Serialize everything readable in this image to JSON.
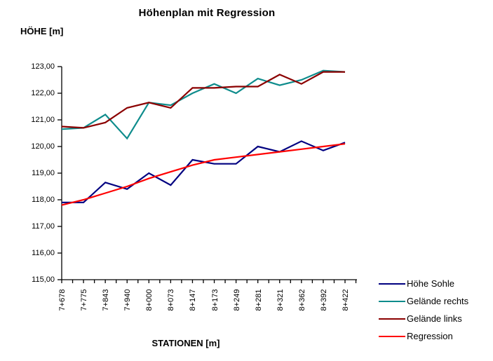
{
  "chart_data": {
    "type": "line",
    "title": "Höhenplan mit Regression",
    "ylabel": "HÖHE [m]",
    "xlabel": "STATIONEN [m]",
    "ylim": [
      115,
      123
    ],
    "grid": false,
    "legend_position": "bottom-right",
    "y_ticks": [
      {
        "v": 123,
        "label": "123,00"
      },
      {
        "v": 122,
        "label": "122,00"
      },
      {
        "v": 121,
        "label": "121,00"
      },
      {
        "v": 120,
        "label": "120,00"
      },
      {
        "v": 119,
        "label": "119,00"
      },
      {
        "v": 118,
        "label": "118,00"
      },
      {
        "v": 117,
        "label": "117,00"
      },
      {
        "v": 116,
        "label": "116,00"
      },
      {
        "v": 115,
        "label": "115,00"
      }
    ],
    "categories": [
      "7+678",
      "7+775",
      "7+843",
      "7+940",
      "8+000",
      "8+073",
      "8+147",
      "8+173",
      "8+249",
      "8+281",
      "8+321",
      "8+362",
      "8+392",
      "8+422"
    ],
    "series": [
      {
        "name": "Höhe Sohle",
        "color": "#000080",
        "values": [
          117.9,
          117.9,
          118.65,
          118.4,
          119.0,
          118.55,
          119.5,
          119.35,
          119.35,
          120.0,
          119.8,
          120.2,
          119.85,
          120.15
        ]
      },
      {
        "name": "Gelände rechts",
        "color": "#0E8C8C",
        "values": [
          120.65,
          120.7,
          121.2,
          120.3,
          121.65,
          121.55,
          122.0,
          122.35,
          122.0,
          122.55,
          122.3,
          122.5,
          122.85,
          122.8
        ]
      },
      {
        "name": "Gelände links",
        "color": "#8B0000",
        "values": [
          120.75,
          120.7,
          120.9,
          121.45,
          121.65,
          121.45,
          122.2,
          122.2,
          122.25,
          122.25,
          122.7,
          122.35,
          122.8,
          122.8
        ]
      },
      {
        "name": "Regression",
        "color": "#FF0000",
        "values": [
          117.8,
          118.0,
          118.25,
          118.5,
          118.8,
          119.05,
          119.3,
          119.5,
          119.6,
          119.7,
          119.8,
          119.9,
          120.0,
          120.1
        ]
      }
    ],
    "axis_color": "#000000"
  }
}
